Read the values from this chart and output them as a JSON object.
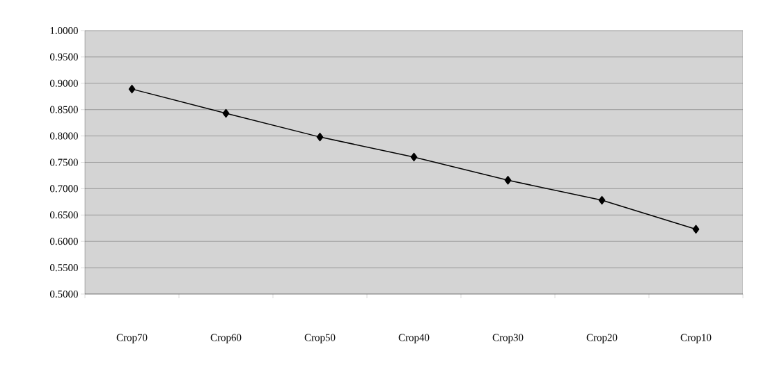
{
  "chart_data": {
    "type": "line",
    "categories": [
      "Crop70",
      "Crop60",
      "Crop50",
      "Crop40",
      "Crop30",
      "Crop20",
      "Crop10"
    ],
    "series": [
      {
        "color": "#000000",
        "values": [
          0.889,
          0.843,
          0.798,
          0.76,
          0.716,
          0.678,
          0.623
        ]
      }
    ],
    "ylim": [
      0.5,
      1.0
    ],
    "yticks": [
      {
        "value": 0.5,
        "label": "0.5000"
      },
      {
        "value": 0.55,
        "label": "0.5500"
      },
      {
        "value": 0.6,
        "label": "0.6000"
      },
      {
        "value": 0.65,
        "label": "0.6500"
      },
      {
        "value": 0.7,
        "label": "0.7000"
      },
      {
        "value": 0.75,
        "label": "0.7500"
      },
      {
        "value": 0.8,
        "label": "0.8000"
      },
      {
        "value": 0.85,
        "label": "0.8500"
      },
      {
        "value": 0.9,
        "label": "0.9000"
      },
      {
        "value": 0.95,
        "label": "0.9500"
      },
      {
        "value": 1.0,
        "label": "1.0000"
      }
    ],
    "grid": "y",
    "marker": "diamond",
    "line_style": "solid"
  }
}
